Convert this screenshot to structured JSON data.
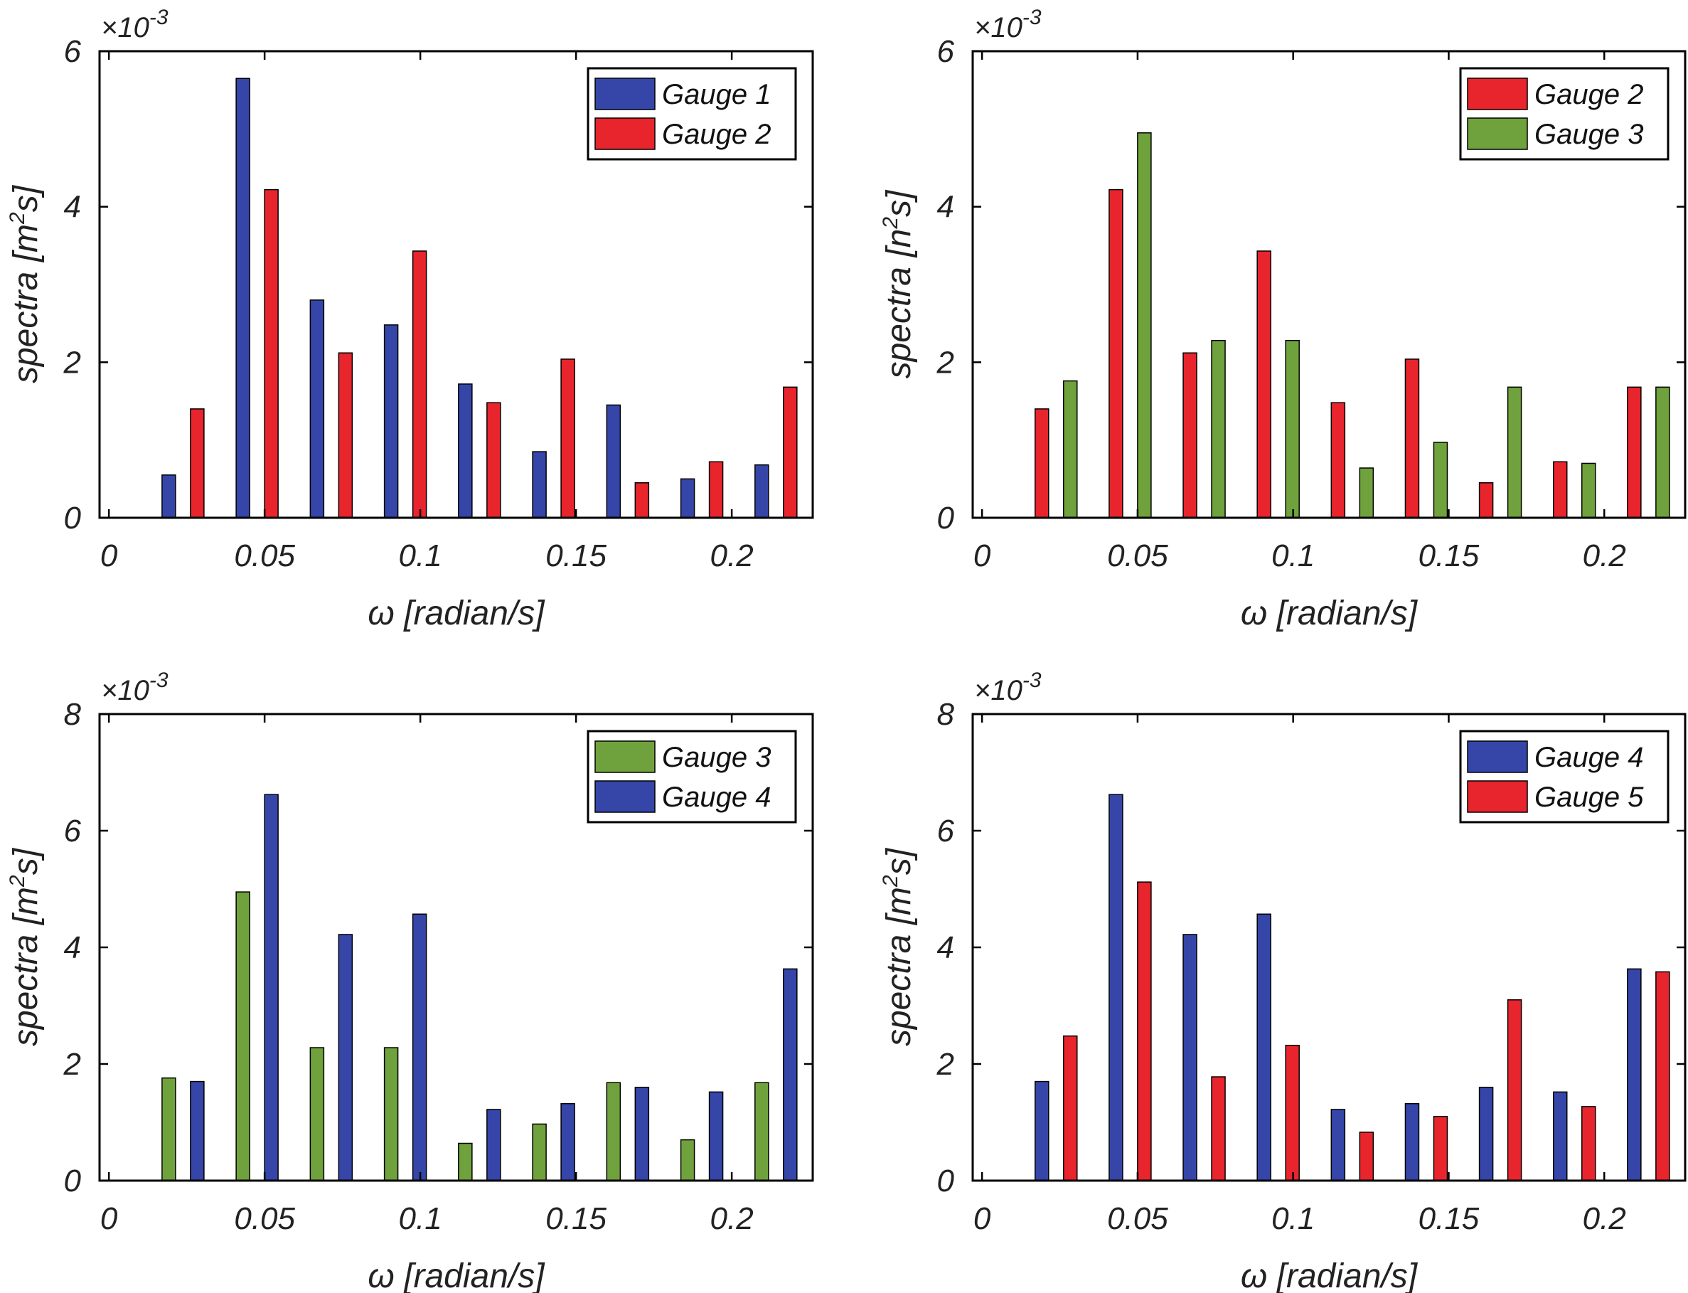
{
  "chart_data": [
    {
      "type": "bar",
      "ylabel_prefix": "spectra [m",
      "ylabel_sup": "2",
      "ylabel_suffix": "s]",
      "xlabel": "ω [radian/s]",
      "y_multiplier_base": "×10",
      "y_multiplier_exp": "-3",
      "ylim": [
        0,
        6
      ],
      "yticks": [
        "0",
        "2",
        "4",
        "6"
      ],
      "xlim": [
        -0.003,
        0.226
      ],
      "xticks": [
        0,
        0.05,
        0.1,
        0.15,
        0.2
      ],
      "xtick_labels": [
        "0",
        "0.05",
        "0.1",
        "0.15",
        "0.2"
      ],
      "x": [
        0.0,
        0.0238,
        0.0476,
        0.0714,
        0.0952,
        0.119,
        0.1428,
        0.1666,
        0.1904,
        0.2142
      ],
      "legend": "top-right",
      "series": [
        {
          "name": "Gauge 1",
          "color": "#3546a8",
          "values": [
            0,
            0.55,
            5.65,
            2.8,
            2.48,
            1.72,
            0.85,
            1.45,
            0.5,
            0.68
          ]
        },
        {
          "name": "Gauge 2",
          "color": "#e8252c",
          "values": [
            0,
            1.4,
            4.22,
            2.12,
            3.43,
            1.48,
            2.04,
            0.45,
            0.72,
            1.68
          ]
        }
      ]
    },
    {
      "type": "bar",
      "ylabel_prefix": "spectra [n",
      "ylabel_sup": "2",
      "ylabel_suffix": "s]",
      "xlabel": "ω [radian/s]",
      "y_multiplier_base": "×10",
      "y_multiplier_exp": "-3",
      "ylim": [
        0,
        6
      ],
      "yticks": [
        "0",
        "2",
        "4",
        "6"
      ],
      "xlim": [
        -0.003,
        0.226
      ],
      "xticks": [
        0,
        0.05,
        0.1,
        0.15,
        0.2
      ],
      "xtick_labels": [
        "0",
        "0.05",
        "0.1",
        "0.15",
        "0.2"
      ],
      "x": [
        0.0,
        0.0238,
        0.0476,
        0.0714,
        0.0952,
        0.119,
        0.1428,
        0.1666,
        0.1904,
        0.2142
      ],
      "legend": "top-right",
      "series": [
        {
          "name": "Gauge 2",
          "color": "#e8252c",
          "values": [
            0,
            1.4,
            4.22,
            2.12,
            3.43,
            1.48,
            2.04,
            0.45,
            0.72,
            1.68
          ]
        },
        {
          "name": "Gauge 3",
          "color": "#6fa23c",
          "values": [
            0,
            1.76,
            4.95,
            2.28,
            2.28,
            0.64,
            0.97,
            1.68,
            0.7,
            1.68
          ]
        }
      ]
    },
    {
      "type": "bar",
      "ylabel_prefix": "spectra [m",
      "ylabel_sup": "2",
      "ylabel_suffix": "s]",
      "xlabel": "ω [radian/s]",
      "y_multiplier_base": "×10",
      "y_multiplier_exp": "-3",
      "ylim": [
        0,
        8
      ],
      "yticks": [
        "0",
        "2",
        "4",
        "6",
        "8"
      ],
      "xlim": [
        -0.003,
        0.226
      ],
      "xticks": [
        0,
        0.05,
        0.1,
        0.15,
        0.2
      ],
      "xtick_labels": [
        "0",
        "0.05",
        "0.1",
        "0.15",
        "0.2"
      ],
      "x": [
        0.0,
        0.0238,
        0.0476,
        0.0714,
        0.0952,
        0.119,
        0.1428,
        0.1666,
        0.1904,
        0.2142
      ],
      "legend": "top-right",
      "series": [
        {
          "name": "Gauge 3",
          "color": "#6fa23c",
          "values": [
            0,
            1.76,
            4.95,
            2.28,
            2.28,
            0.64,
            0.97,
            1.68,
            0.7,
            1.68
          ]
        },
        {
          "name": "Gauge 4",
          "color": "#3546a8",
          "values": [
            0,
            1.7,
            6.62,
            4.22,
            4.57,
            1.22,
            1.32,
            1.6,
            1.52,
            3.63
          ]
        }
      ]
    },
    {
      "type": "bar",
      "ylabel_prefix": "spectra [m",
      "ylabel_sup": "2",
      "ylabel_suffix": "s]",
      "xlabel": "ω [radian/s]",
      "y_multiplier_base": "×10",
      "y_multiplier_exp": "-3",
      "ylim": [
        0,
        8
      ],
      "yticks": [
        "0",
        "2",
        "4",
        "6",
        "8"
      ],
      "xlim": [
        -0.003,
        0.226
      ],
      "xticks": [
        0,
        0.05,
        0.1,
        0.15,
        0.2
      ],
      "xtick_labels": [
        "0",
        "0.05",
        "0.1",
        "0.15",
        "0.2"
      ],
      "x": [
        0.0,
        0.0238,
        0.0476,
        0.0714,
        0.0952,
        0.119,
        0.1428,
        0.1666,
        0.1904,
        0.2142
      ],
      "legend": "top-right",
      "series": [
        {
          "name": "Gauge 4",
          "color": "#3546a8",
          "values": [
            0,
            1.7,
            6.62,
            4.22,
            4.57,
            1.22,
            1.32,
            1.6,
            1.52,
            3.63
          ]
        },
        {
          "name": "Gauge 5",
          "color": "#e8252c",
          "values": [
            0,
            2.48,
            5.12,
            1.78,
            2.32,
            0.83,
            1.1,
            3.1,
            1.27,
            3.58
          ]
        }
      ]
    }
  ]
}
